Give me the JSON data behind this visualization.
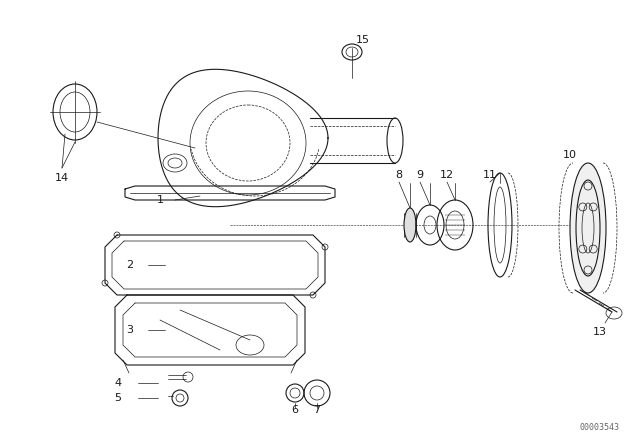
{
  "bg_color": "#ffffff",
  "line_color": "#1a1a1a",
  "fig_width": 6.4,
  "fig_height": 4.48,
  "dpi": 100,
  "watermark": "00003543"
}
